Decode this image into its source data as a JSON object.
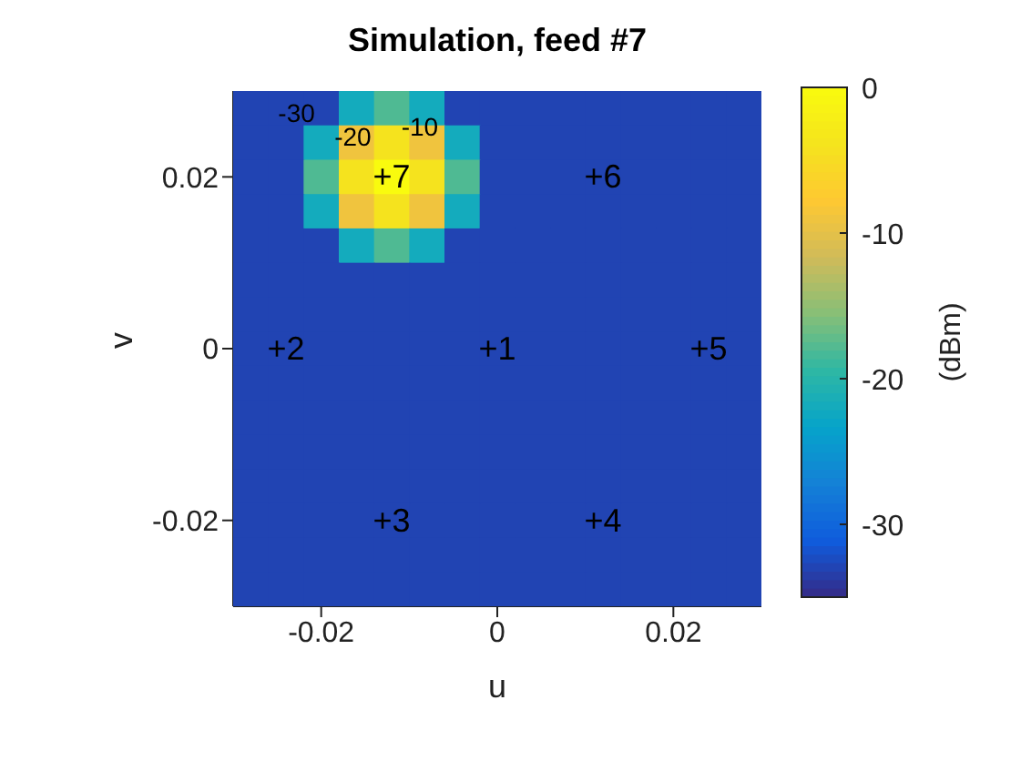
{
  "chart_data": {
    "type": "heatmap",
    "title": "Simulation, feed #7",
    "xlabel": "u",
    "ylabel": "v",
    "clabel": "(dBm)",
    "categories": [
      null,
      null,
      "-0.02",
      null,
      null,
      null,
      null,
      "0",
      null,
      null,
      null,
      null,
      "0.02",
      null,
      null
    ],
    "y_categories": [
      null,
      null,
      "0.02",
      null,
      null,
      null,
      null,
      "0",
      null,
      null,
      null,
      null,
      "-0.02",
      null,
      null
    ],
    "clim": [
      -35,
      0
    ],
    "cticks": [
      0,
      -10,
      -20,
      -30
    ],
    "cells": [
      [
        -33,
        -33,
        -33,
        -22,
        -18,
        -22,
        -33,
        -33,
        -33,
        -33,
        -33,
        -33,
        -33,
        -33,
        -33
      ],
      [
        -33,
        -33,
        -22,
        -9,
        -4,
        -9,
        -22,
        -33,
        -33,
        -33,
        -33,
        -33,
        -33,
        -33,
        -33
      ],
      [
        -33,
        -33,
        -18,
        -4,
        0,
        -4,
        -18,
        -33,
        -33,
        -33,
        -33,
        -33,
        -33,
        -33,
        -33
      ],
      [
        -33,
        -33,
        -22,
        -9,
        -4,
        -9,
        -22,
        -33,
        -33,
        -33,
        -33,
        -33,
        -33,
        -33,
        -33
      ],
      [
        -33,
        -33,
        -33,
        -22,
        -18,
        -22,
        -33,
        -33,
        -33,
        -33,
        -33,
        -33,
        -33,
        -33,
        -33
      ],
      [
        -33,
        -33,
        -33,
        -33,
        -33,
        -33,
        -33,
        -33,
        -33,
        -33,
        -33,
        -33,
        -33,
        -33,
        -33
      ],
      [
        -33,
        -33,
        -33,
        -33,
        -33,
        -33,
        -33,
        -33,
        -33,
        -33,
        -33,
        -33,
        -33,
        -33,
        -33
      ],
      [
        -33,
        -33,
        -33,
        -33,
        -33,
        -33,
        -33,
        -33,
        -33,
        -33,
        -33,
        -33,
        -33,
        -33,
        -33
      ],
      [
        -33,
        -33,
        -33,
        -33,
        -33,
        -33,
        -33,
        -33,
        -33,
        -33,
        -33,
        -33,
        -33,
        -33,
        -33
      ],
      [
        -33,
        -33,
        -33,
        -33,
        -33,
        -33,
        -33,
        -33,
        -33,
        -33,
        -33,
        -33,
        -33,
        -33,
        -33
      ],
      [
        -33,
        -33,
        -33,
        -33,
        -33,
        -33,
        -33,
        -33,
        -33,
        -33,
        -33,
        -33,
        -33,
        -33,
        -33
      ],
      [
        -33,
        -33,
        -33,
        -33,
        -33,
        -33,
        -33,
        -33,
        -33,
        -33,
        -33,
        -33,
        -33,
        -33,
        -33
      ],
      [
        -33,
        -33,
        -33,
        -33,
        -33,
        -33,
        -33,
        -33,
        -33,
        -33,
        -33,
        -33,
        -33,
        -33,
        -33
      ],
      [
        -33,
        -33,
        -33,
        -33,
        -33,
        -33,
        -33,
        -33,
        -33,
        -33,
        -33,
        -33,
        -33,
        -33,
        -33
      ],
      [
        -33,
        -33,
        -33,
        -33,
        -33,
        -33,
        -33,
        -33,
        -33,
        -33,
        -33,
        -33,
        -33,
        -33,
        -33
      ]
    ],
    "annotations": [
      "+1",
      "+2",
      "+3",
      "+4",
      "+5",
      "+6",
      "+7",
      "-30",
      "-20",
      "-10"
    ]
  }
}
